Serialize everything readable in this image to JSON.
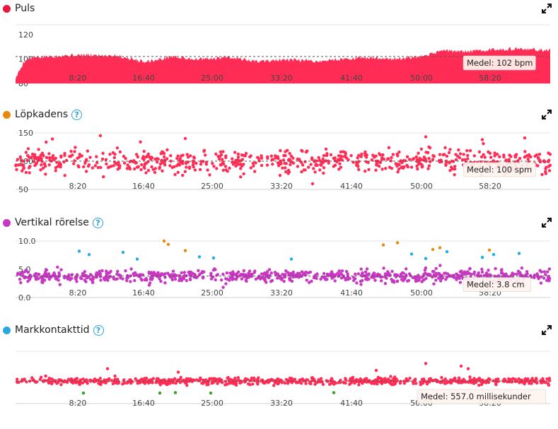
{
  "x_ticks": [
    "8:20",
    "16:40",
    "25:00",
    "33:20",
    "41:40",
    "50:00",
    "58:20"
  ],
  "colors": {
    "heart": "#ff2d55",
    "cadence": "#e8890c",
    "vertical": "#c837c2",
    "ground": "#29a8e0"
  },
  "panels": [
    {
      "key": "puls",
      "title": "Puls",
      "has_help": false,
      "avg_label": "Medel: 102 bpm"
    },
    {
      "key": "lopkadens",
      "title": "Löpkadens",
      "has_help": true,
      "avg_label": "Medel: 100 spm"
    },
    {
      "key": "vertikal",
      "title": "Vertikal rörelse",
      "has_help": true,
      "avg_label": "Medel: 3.8 cm"
    },
    {
      "key": "mark",
      "title": "Markkontakttid",
      "has_help": true,
      "avg_label": "Medel: 557.0 millisekunder"
    }
  ],
  "chart_data": [
    {
      "type": "area",
      "title": "Puls",
      "unit": "bpm",
      "y_ticks": [
        "80",
        "100",
        "120"
      ],
      "ylim": [
        80,
        128
      ],
      "xlim": [
        0,
        3780
      ],
      "average": 102,
      "series": [
        {
          "x": [
            0,
            60,
            120,
            240,
            360,
            500,
            700,
            900,
            1000,
            1100,
            1250,
            1400,
            1500,
            1700,
            1850,
            2000,
            2150,
            2300,
            2500,
            2700,
            2900,
            3000,
            3200,
            3400,
            3500,
            3600,
            3780
          ],
          "values": [
            84,
            98,
            101,
            102,
            103,
            103,
            103,
            98,
            99,
            102,
            100,
            100,
            102,
            98,
            99,
            99,
            98,
            100,
            101,
            100,
            102,
            107,
            106,
            108,
            108,
            108,
            107
          ]
        }
      ]
    },
    {
      "type": "scatter",
      "title": "Löpkadens",
      "unit": "spm",
      "y_ticks": [
        "50",
        "100",
        "150"
      ],
      "ylim": [
        50,
        150
      ],
      "xlim": [
        0,
        3780
      ],
      "average": 100,
      "series": [
        {
          "center": 100,
          "spread": 20,
          "count": 700,
          "seed": 11,
          "outliers": [
            [
              600,
              145
            ],
            [
              1200,
              140
            ],
            [
              2100,
              60
            ],
            [
              2900,
              143
            ],
            [
              3300,
              138
            ],
            [
              3600,
              141
            ]
          ]
        }
      ]
    },
    {
      "type": "scatter",
      "title": "Vertikal rörelse",
      "unit": "cm",
      "y_ticks": [
        "0.0",
        "5.0",
        "10.0"
      ],
      "ylim": [
        0,
        10
      ],
      "xlim": [
        0,
        3780
      ],
      "average": 3.8,
      "series": [
        {
          "center": 3.8,
          "spread": 1.0,
          "count": 750,
          "seed": 23,
          "outliers": []
        }
      ],
      "extra_points": {
        "ground": [
          [
            450,
            8.2
          ],
          [
            520,
            7.6
          ],
          [
            760,
            8.0
          ],
          [
            860,
            6.8
          ],
          [
            1300,
            7.2
          ],
          [
            1400,
            7.0
          ],
          [
            1950,
            6.8
          ],
          [
            2800,
            7.7
          ],
          [
            2900,
            6.9
          ],
          [
            3050,
            8.1
          ],
          [
            3300,
            7.1
          ],
          [
            3380,
            7.6
          ],
          [
            3560,
            7.8
          ]
        ],
        "cadence": [
          [
            1050,
            10.0
          ],
          [
            1080,
            9.4
          ],
          [
            1200,
            8.3
          ],
          [
            2600,
            9.3
          ],
          [
            2700,
            9.7
          ],
          [
            2950,
            8.5
          ],
          [
            3000,
            8.8
          ],
          [
            3350,
            8.4
          ]
        ]
      }
    },
    {
      "type": "scatter",
      "title": "Markkontakttid",
      "unit": "millisekunder",
      "y_ticks": [],
      "ylim": [
        300,
        900
      ],
      "xlim": [
        0,
        3780
      ],
      "average": 557,
      "series": [
        {
          "center": 557,
          "spread": 35,
          "count": 700,
          "seed": 37,
          "outliers": [
            [
              650,
              700
            ],
            [
              1150,
              660
            ],
            [
              2550,
              680
            ],
            [
              2900,
              760
            ],
            [
              3150,
              730
            ],
            [
              3200,
              700
            ]
          ]
        }
      ],
      "extra_points": {
        "cadence": [
          [
            480,
            420
          ],
          [
            1020,
            420
          ],
          [
            1130,
            425
          ],
          [
            1380,
            420
          ],
          [
            2250,
            425
          ]
        ]
      }
    }
  ]
}
